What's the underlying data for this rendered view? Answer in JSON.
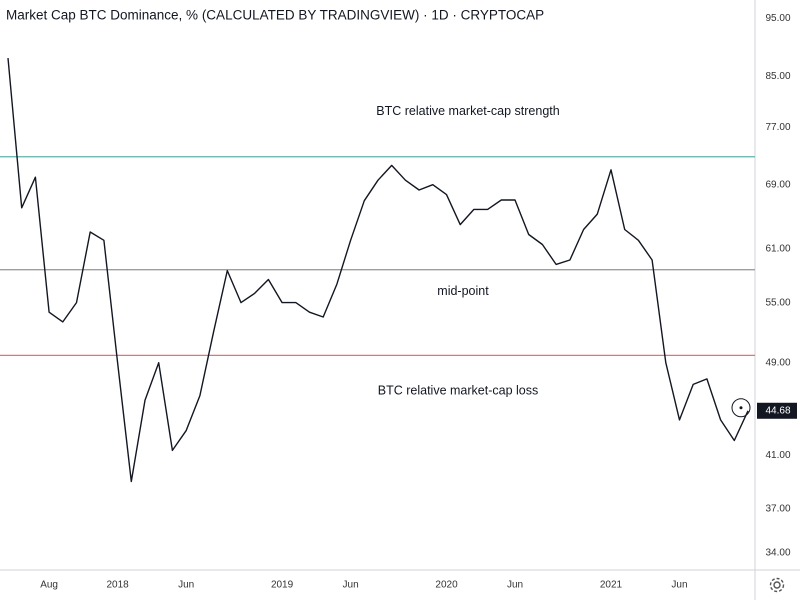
{
  "chart_data": {
    "type": "line",
    "title": "Market Cap BTC Dominance, % (CALCULATED BY TRADINGVIEW) · 1D · CRYPTOCAP",
    "log_scale": true,
    "grid": false,
    "color": "#131722",
    "x": [
      "2017-05",
      "2017-06",
      "2017-07",
      "2017-08",
      "2017-09",
      "2017-10",
      "2017-11",
      "2017-12",
      "2018-01",
      "2018-02",
      "2018-03",
      "2018-04",
      "2018-05",
      "2018-06",
      "2018-07",
      "2018-08",
      "2018-09",
      "2018-10",
      "2018-11",
      "2018-12",
      "2019-01",
      "2019-02",
      "2019-03",
      "2019-04",
      "2019-05",
      "2019-06",
      "2019-07",
      "2019-08",
      "2019-09",
      "2019-10",
      "2019-11",
      "2019-12",
      "2020-01",
      "2020-02",
      "2020-03",
      "2020-04",
      "2020-05",
      "2020-06",
      "2020-07",
      "2020-08",
      "2020-09",
      "2020-10",
      "2020-11",
      "2020-12",
      "2021-01",
      "2021-02",
      "2021-03",
      "2021-04",
      "2021-05",
      "2021-06",
      "2021-07",
      "2021-08",
      "2021-09",
      "2021-10",
      "2021-11"
    ],
    "values": [
      88,
      66,
      70,
      54,
      53,
      55,
      63,
      62,
      49,
      39,
      45.6,
      49,
      41.4,
      43,
      46,
      52,
      58.5,
      55,
      56,
      57.5,
      55,
      55,
      54,
      53.5,
      57,
      62,
      66.9,
      69.6,
      71.6,
      69.6,
      68.3,
      69,
      67.7,
      63.9,
      65.8,
      65.8,
      67,
      67,
      62.7,
      61.5,
      59.2,
      59.7,
      63.3,
      65.2,
      71,
      63.3,
      62,
      59.7,
      49,
      43.9,
      47,
      47.5,
      43.9,
      42.2,
      44.68
    ],
    "xlim": [
      "2017-05",
      "2021-11"
    ],
    "xticks": [
      {
        "value": "2017-08",
        "label": "Aug"
      },
      {
        "value": "2018-01",
        "label": "2018"
      },
      {
        "value": "2018-06",
        "label": "Jun"
      },
      {
        "value": "2019-01",
        "label": "2019"
      },
      {
        "value": "2019-06",
        "label": "Jun"
      },
      {
        "value": "2020-01",
        "label": "2020"
      },
      {
        "value": "2020-06",
        "label": "Jun"
      },
      {
        "value": "2021-01",
        "label": "2021"
      },
      {
        "value": "2021-06",
        "label": "Jun"
      }
    ],
    "ylim": [
      32.9,
      98.4
    ],
    "yticks": [
      {
        "value": 95,
        "label": "95.00"
      },
      {
        "value": 85,
        "label": "85.00"
      },
      {
        "value": 77,
        "label": "77.00"
      },
      {
        "value": 69,
        "label": "69.00"
      },
      {
        "value": 61,
        "label": "61.00"
      },
      {
        "value": 55,
        "label": "55.00"
      },
      {
        "value": 49,
        "label": "49.00"
      },
      {
        "value": 41,
        "label": "41.00"
      },
      {
        "value": 37,
        "label": "37.00"
      },
      {
        "value": 34,
        "label": "34.00"
      }
    ],
    "hlines": [
      {
        "value": 72.8,
        "color": "#5fb3a8",
        "text": "BTC relative market-cap strength"
      },
      {
        "value": 58.6,
        "color": "#9e9e9e",
        "text": "mid-point"
      },
      {
        "value": 49.7,
        "color": "#e57373",
        "text": "BTC relative market-cap loss"
      }
    ]
  }
}
